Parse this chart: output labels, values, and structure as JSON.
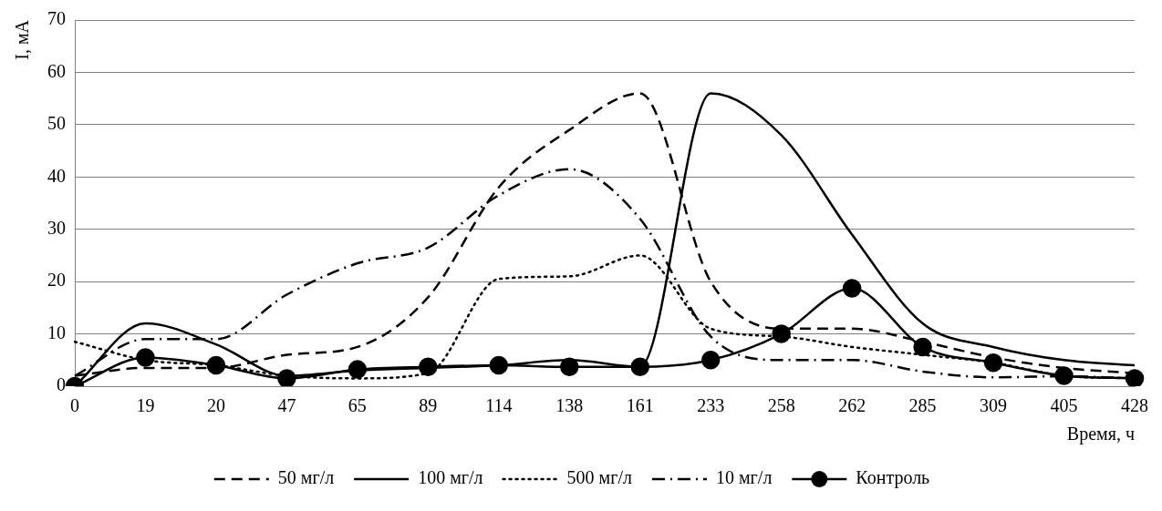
{
  "chart_data": {
    "type": "line",
    "xlabel": "Время, ч",
    "ylabel": "I, мА",
    "categories": [
      "0",
      "19",
      "20",
      "47",
      "65",
      "89",
      "114",
      "138",
      "161",
      "233",
      "258",
      "262",
      "285",
      "309",
      "405",
      "428"
    ],
    "ylim": [
      0,
      70
    ],
    "yticks": [
      0,
      10,
      20,
      30,
      40,
      50,
      60,
      70
    ],
    "grid": "y",
    "legend": "bottom",
    "series": [
      {
        "name": "50 мг/л",
        "color": "#000000",
        "line_style": "dashed",
        "marker": "none",
        "values": [
          2,
          3.5,
          3.5,
          6,
          7.5,
          17,
          38,
          49,
          56,
          20,
          11,
          11,
          8.5,
          5.5,
          3.5,
          2.5
        ]
      },
      {
        "name": "100 мг/л",
        "color": "#000000",
        "line_style": "solid",
        "marker": "none",
        "values": [
          0,
          12,
          8,
          2,
          3,
          3.5,
          4,
          5,
          3.7,
          56,
          48,
          29,
          12,
          7.5,
          5,
          4
        ]
      },
      {
        "name": "500 мг/л",
        "color": "#000000",
        "line_style": "dotted",
        "marker": "none",
        "values": [
          8.5,
          5,
          4,
          2,
          1.5,
          2.5,
          20.5,
          21,
          25,
          11,
          9.5,
          7.5,
          6,
          4.5,
          2,
          1.5
        ]
      },
      {
        "name": "10 мг/л",
        "color": "#000000",
        "line_style": "dashdot",
        "marker": "none",
        "values": [
          2,
          9,
          9,
          17.5,
          23.5,
          26.5,
          36.5,
          41.5,
          32,
          9.5,
          5,
          5,
          2.8,
          1.7,
          1.9,
          1.5
        ]
      },
      {
        "name": "Контроль",
        "color": "#000000",
        "line_style": "solid",
        "marker": "circle",
        "values": [
          0,
          5.5,
          4,
          1.5,
          3.2,
          3.7,
          4,
          3.7,
          3.7,
          5,
          10,
          18.7,
          7.5,
          4.5,
          2,
          1.5
        ]
      }
    ]
  }
}
